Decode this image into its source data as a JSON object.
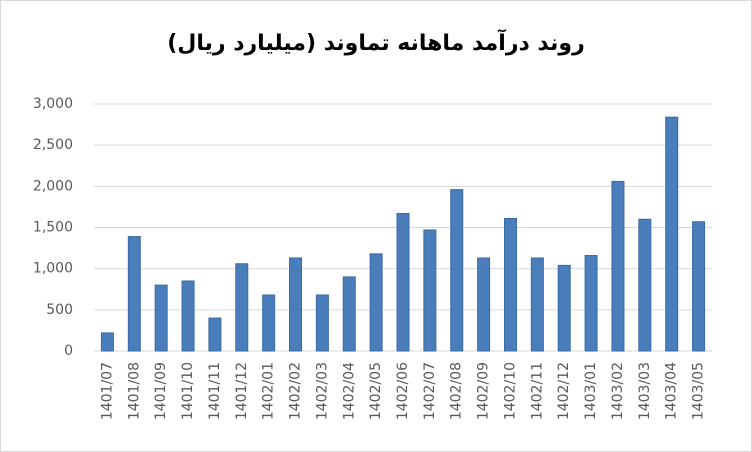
{
  "chart_data": {
    "type": "bar",
    "title": "روند درآمد ماهانه تماوند (میلیارد ریال)",
    "categories": [
      "1401/07",
      "1401/08",
      "1401/09",
      "1401/10",
      "1401/11",
      "1401/12",
      "1402/01",
      "1402/02",
      "1402/03",
      "1402/04",
      "1402/05",
      "1402/06",
      "1402/07",
      "1402/08",
      "1402/09",
      "1402/10",
      "1402/11",
      "1402/12",
      "1403/01",
      "1403/02",
      "1403/03",
      "1403/04",
      "1403/05"
    ],
    "values": [
      220,
      1390,
      800,
      850,
      400,
      1060,
      680,
      1130,
      680,
      900,
      1180,
      1670,
      1470,
      1960,
      1130,
      1610,
      1130,
      1040,
      1160,
      2060,
      1600,
      2840,
      1570
    ],
    "color": "#4a7ebb",
    "ylim": [
      0,
      3000
    ],
    "yticks": [
      0,
      500,
      {
        "value": 1000,
        "label": "1,000"
      },
      {
        "value": 1500,
        "label": "1,500"
      },
      {
        "value": 2000,
        "label": "2,000"
      },
      {
        "value": 2500,
        "label": "2,500"
      },
      {
        "value": 3000,
        "label": "3,000"
      }
    ],
    "grid": true
  }
}
